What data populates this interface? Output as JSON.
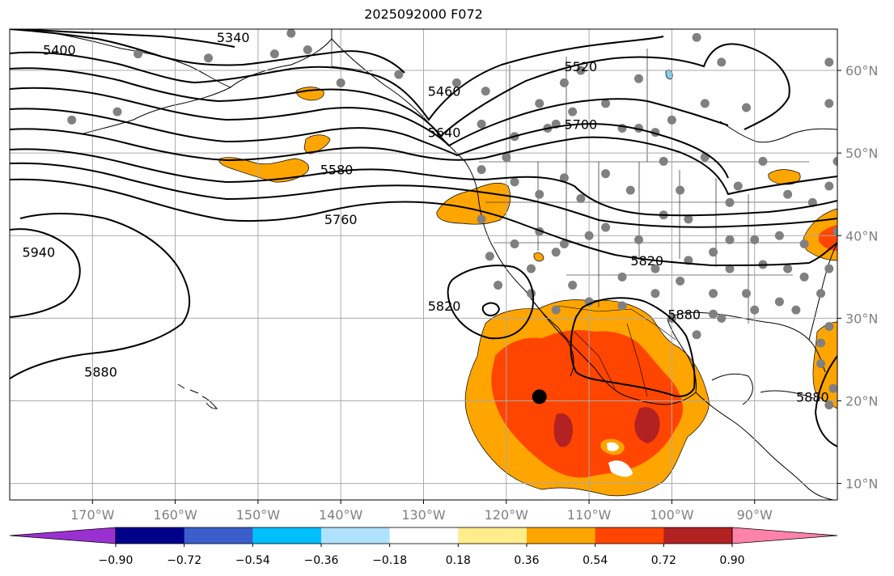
{
  "title": "2025092000 F072",
  "map": {
    "projection": "cylindrical",
    "lon_range": [
      -180,
      -80
    ],
    "lat_range": [
      8,
      65
    ],
    "lon_ticks": [
      {
        "value": -170,
        "label": "170°W"
      },
      {
        "value": -160,
        "label": "160°W"
      },
      {
        "value": -150,
        "label": "150°W"
      },
      {
        "value": -140,
        "label": "140°W"
      },
      {
        "value": -130,
        "label": "130°W"
      },
      {
        "value": -120,
        "label": "120°W"
      },
      {
        "value": -110,
        "label": "110°W"
      },
      {
        "value": -100,
        "label": "100°W"
      },
      {
        "value": -90,
        "label": "90°W"
      }
    ],
    "lat_ticks": [
      {
        "value": 10,
        "label": "10°N"
      },
      {
        "value": 20,
        "label": "20°N"
      },
      {
        "value": 30,
        "label": "30°N"
      },
      {
        "value": 40,
        "label": "40°N"
      },
      {
        "value": 50,
        "label": "50°N"
      },
      {
        "value": 60,
        "label": "60°N"
      }
    ],
    "grid": true,
    "contour_labels": [
      {
        "text": "5340",
        "lon": -153,
        "lat": 64
      },
      {
        "text": "5400",
        "lon": -174,
        "lat": 62.5
      },
      {
        "text": "5460",
        "lon": -127.5,
        "lat": 57.5
      },
      {
        "text": "5520",
        "lon": -111,
        "lat": 60.5
      },
      {
        "text": "5640",
        "lon": -127.5,
        "lat": 52.5
      },
      {
        "text": "5700",
        "lon": -111,
        "lat": 53.5
      },
      {
        "text": "5580",
        "lon": -140.5,
        "lat": 48
      },
      {
        "text": "5760",
        "lon": -140,
        "lat": 42
      },
      {
        "text": "5820",
        "lon": -103,
        "lat": 37
      },
      {
        "text": "5820",
        "lon": -127.5,
        "lat": 31.5
      },
      {
        "text": "5880",
        "lon": -98.5,
        "lat": 30.5
      },
      {
        "text": "5880",
        "lon": -83,
        "lat": 20.5
      },
      {
        "text": "5880",
        "lon": -169,
        "lat": 23.5
      },
      {
        "text": "5940",
        "lon": -176.5,
        "lat": 38
      }
    ],
    "center_marker": {
      "lon": -116,
      "lat": 20.5
    },
    "station_dots": [
      [
        -164.5,
        62
      ],
      [
        -172.5,
        54
      ],
      [
        -167,
        55
      ],
      [
        -156,
        61.5
      ],
      [
        -148,
        62
      ],
      [
        -146,
        64.5
      ],
      [
        -144,
        62.5
      ],
      [
        -140,
        58.5
      ],
      [
        -133,
        59.5
      ],
      [
        -126,
        58.5
      ],
      [
        -122.5,
        57.5
      ],
      [
        -116,
        56
      ],
      [
        -113,
        58.5
      ],
      [
        -111,
        60
      ],
      [
        -108,
        56
      ],
      [
        -104,
        59
      ],
      [
        -97,
        64
      ],
      [
        -94,
        61
      ],
      [
        -91,
        55.5
      ],
      [
        -96,
        56
      ],
      [
        -100,
        54
      ],
      [
        -102,
        52.5
      ],
      [
        -104,
        53
      ],
      [
        -106,
        53
      ],
      [
        -112,
        55
      ],
      [
        -114,
        53.5
      ],
      [
        -115,
        53
      ],
      [
        -119,
        52
      ],
      [
        -123,
        53.5
      ],
      [
        -120,
        49.5
      ],
      [
        -123,
        48
      ],
      [
        -119,
        46.5
      ],
      [
        -116,
        45
      ],
      [
        -113,
        47
      ],
      [
        -111,
        44.5
      ],
      [
        -108,
        47.5
      ],
      [
        -105,
        45.5
      ],
      [
        -101,
        49
      ],
      [
        -99,
        45.5
      ],
      [
        -96,
        49.5
      ],
      [
        -92,
        46
      ],
      [
        -86,
        45
      ],
      [
        -83,
        44
      ],
      [
        -81,
        46
      ],
      [
        -89,
        49
      ],
      [
        -93,
        44
      ],
      [
        -98,
        42
      ],
      [
        -101,
        42.5
      ],
      [
        -104,
        39.5
      ],
      [
        -108,
        41
      ],
      [
        -110,
        40
      ],
      [
        -113,
        39
      ],
      [
        -116,
        40.5
      ],
      [
        -119,
        39
      ],
      [
        -122,
        37.5
      ],
      [
        -123,
        42
      ],
      [
        -121,
        34
      ],
      [
        -117,
        36
      ],
      [
        -114,
        38
      ],
      [
        -112,
        34
      ],
      [
        -106,
        35
      ],
      [
        -102,
        36
      ],
      [
        -98,
        37
      ],
      [
        -95,
        38
      ],
      [
        -93,
        39.5
      ],
      [
        -90,
        39.5
      ],
      [
        -87,
        40
      ],
      [
        -84,
        39
      ],
      [
        -81,
        36
      ],
      [
        -84,
        35
      ],
      [
        -87,
        32
      ],
      [
        -91,
        33
      ],
      [
        -95,
        33
      ],
      [
        -99,
        34.5
      ],
      [
        -102,
        33
      ],
      [
        -106,
        31.5
      ],
      [
        -110,
        32
      ],
      [
        -114,
        31
      ],
      [
        -117,
        33
      ],
      [
        -93,
        36
      ],
      [
        -89,
        36.5
      ],
      [
        -86,
        36
      ],
      [
        -82,
        33
      ],
      [
        -85,
        31
      ],
      [
        -90,
        31
      ],
      [
        -94,
        30
      ],
      [
        -100,
        30
      ],
      [
        -97,
        28
      ],
      [
        -95,
        30.5
      ],
      [
        -82,
        27
      ],
      [
        -81,
        29
      ],
      [
        -82,
        24.5
      ],
      [
        -81,
        19.5
      ],
      [
        -80.5,
        21.5
      ],
      [
        -81,
        56
      ],
      [
        -81,
        61
      ],
      [
        -80,
        40.5
      ],
      [
        -80,
        49
      ]
    ]
  },
  "colorbar": {
    "tick_labels": [
      "−0.90",
      "−0.72",
      "−0.54",
      "−0.36",
      "−0.18",
      "0.18",
      "0.36",
      "0.54",
      "0.72",
      "0.90"
    ],
    "colors": [
      "#9b30d0",
      "#00008b",
      "#3a5fcd",
      "#00bfff",
      "#b0e2ff",
      "#ffffff",
      "#ffec8b",
      "#ffa500",
      "#ff4500",
      "#b22222",
      "#ff82ab"
    ]
  },
  "fill_colors": {
    "level_036": "#ffa500",
    "level_054": "#ff4500",
    "level_072": "#b22222",
    "level_neg": "#87ceeb"
  }
}
